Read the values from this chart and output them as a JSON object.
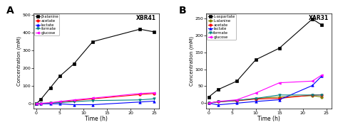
{
  "panel_A": {
    "title": "XBR41",
    "label": "A",
    "xlabel": "Time (h)",
    "ylabel": "Concentration (mM)",
    "xlim": [
      -0.5,
      26
    ],
    "ylim": [
      -25,
      510
    ],
    "yticks": [
      0,
      100,
      200,
      300,
      400,
      500
    ],
    "xticks": [
      0,
      5,
      10,
      15,
      20,
      25
    ],
    "series": [
      {
        "label": "β-alanine",
        "color": "#000000",
        "marker": "s",
        "x": [
          0,
          1,
          3,
          5,
          8,
          12,
          22,
          25
        ],
        "y": [
          0,
          25,
          90,
          155,
          225,
          350,
          420,
          405
        ]
      },
      {
        "label": "acetate",
        "color": "#ff0000",
        "marker": "o",
        "x": [
          0,
          1,
          3,
          5,
          8,
          12,
          22,
          25
        ],
        "y": [
          0,
          2,
          5,
          10,
          18,
          28,
          52,
          58
        ]
      },
      {
        "label": "lactate",
        "color": "#0000ff",
        "marker": "^",
        "x": [
          0,
          1,
          3,
          5,
          8,
          12,
          22,
          25
        ],
        "y": [
          0,
          0,
          0,
          0,
          -5,
          -5,
          10,
          15
        ]
      },
      {
        "label": "formate",
        "color": "#008080",
        "marker": "v",
        "x": [
          0,
          1,
          3,
          5,
          8,
          12,
          22,
          25
        ],
        "y": [
          0,
          1,
          4,
          7,
          12,
          18,
          22,
          28
        ]
      },
      {
        "label": "glucose",
        "color": "#ff00ff",
        "marker": "<",
        "x": [
          0,
          1,
          3,
          5,
          8,
          12,
          22,
          25
        ],
        "y": [
          0,
          3,
          6,
          13,
          22,
          32,
          58,
          62
        ]
      }
    ]
  },
  "panel_B": {
    "title": "XAR31",
    "label": "B",
    "xlabel": "Time (h)",
    "ylabel": "Concentration (mM)",
    "xlim": [
      -0.5,
      26
    ],
    "ylim": [
      -15,
      265
    ],
    "yticks": [
      0,
      50,
      100,
      150,
      200,
      250
    ],
    "xticks": [
      0,
      5,
      10,
      15,
      20,
      25
    ],
    "series": [
      {
        "label": "L-aspartate",
        "color": "#000000",
        "marker": "s",
        "x": [
          0,
          2,
          6,
          10,
          15,
          22,
          24
        ],
        "y": [
          18,
          40,
          65,
          128,
          162,
          248,
          230
        ]
      },
      {
        "label": "L-alanine",
        "color": "#808000",
        "marker": "o",
        "x": [
          0,
          2,
          6,
          10,
          15,
          22,
          24
        ],
        "y": [
          0,
          4,
          8,
          14,
          18,
          22,
          18
        ]
      },
      {
        "label": "acetate",
        "color": "#ff0000",
        "marker": "o",
        "x": [
          0,
          2,
          6,
          10,
          15,
          22,
          24
        ],
        "y": [
          0,
          4,
          7,
          12,
          14,
          24,
          24
        ]
      },
      {
        "label": "lactate",
        "color": "#0000ff",
        "marker": "^",
        "x": [
          0,
          2,
          6,
          10,
          15,
          22,
          24
        ],
        "y": [
          0,
          -5,
          0,
          5,
          10,
          52,
          80
        ]
      },
      {
        "label": "formate",
        "color": "#008080",
        "marker": "v",
        "x": [
          0,
          2,
          6,
          10,
          15,
          22,
          24
        ],
        "y": [
          0,
          4,
          8,
          14,
          24,
          24,
          24
        ]
      },
      {
        "label": "glucose",
        "color": "#ff00ff",
        "marker": "<",
        "x": [
          0,
          2,
          6,
          10,
          15,
          22,
          24
        ],
        "y": [
          0,
          5,
          10,
          30,
          60,
          65,
          83
        ]
      }
    ]
  },
  "fig_width": 4.74,
  "fig_height": 1.86,
  "dpi": 100,
  "background_color": "#ffffff"
}
